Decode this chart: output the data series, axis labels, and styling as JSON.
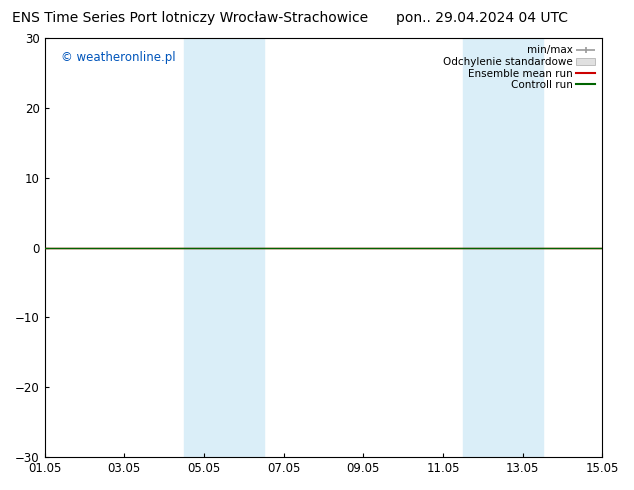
{
  "title_left": "ENS Time Series Port lotniczy Wrocław-Strachowice",
  "title_right": "pon.. 29.04.2024 04 UTC",
  "watermark": "© weatheronline.pl",
  "watermark_color": "#0055bb",
  "ylim": [
    -30,
    30
  ],
  "yticks": [
    -30,
    -20,
    -10,
    0,
    10,
    20,
    30
  ],
  "xtick_labels": [
    "01.05",
    "03.05",
    "05.05",
    "07.05",
    "09.05",
    "11.05",
    "13.05",
    "15.05"
  ],
  "xtick_positions": [
    0,
    2,
    4,
    6,
    8,
    10,
    12,
    14
  ],
  "x_total_days": 14,
  "shaded_regions": [
    {
      "xstart": 3.5,
      "xend": 5.5,
      "color": "#daeef8"
    },
    {
      "xstart": 10.5,
      "xend": 12.5,
      "color": "#daeef8"
    }
  ],
  "flat_line_color": "#006400",
  "ensemble_mean_color": "#cc0000",
  "background_color": "#ffffff",
  "legend_minmax_color": "#999999",
  "legend_std_color": "#cccccc",
  "legend_ensemble_color": "#cc0000",
  "legend_control_color": "#006400",
  "title_fontsize": 10,
  "tick_fontsize": 8.5,
  "watermark_fontsize": 8.5,
  "legend_fontsize": 7.5,
  "border_color": "#000000",
  "zero_line_color": "#000000"
}
